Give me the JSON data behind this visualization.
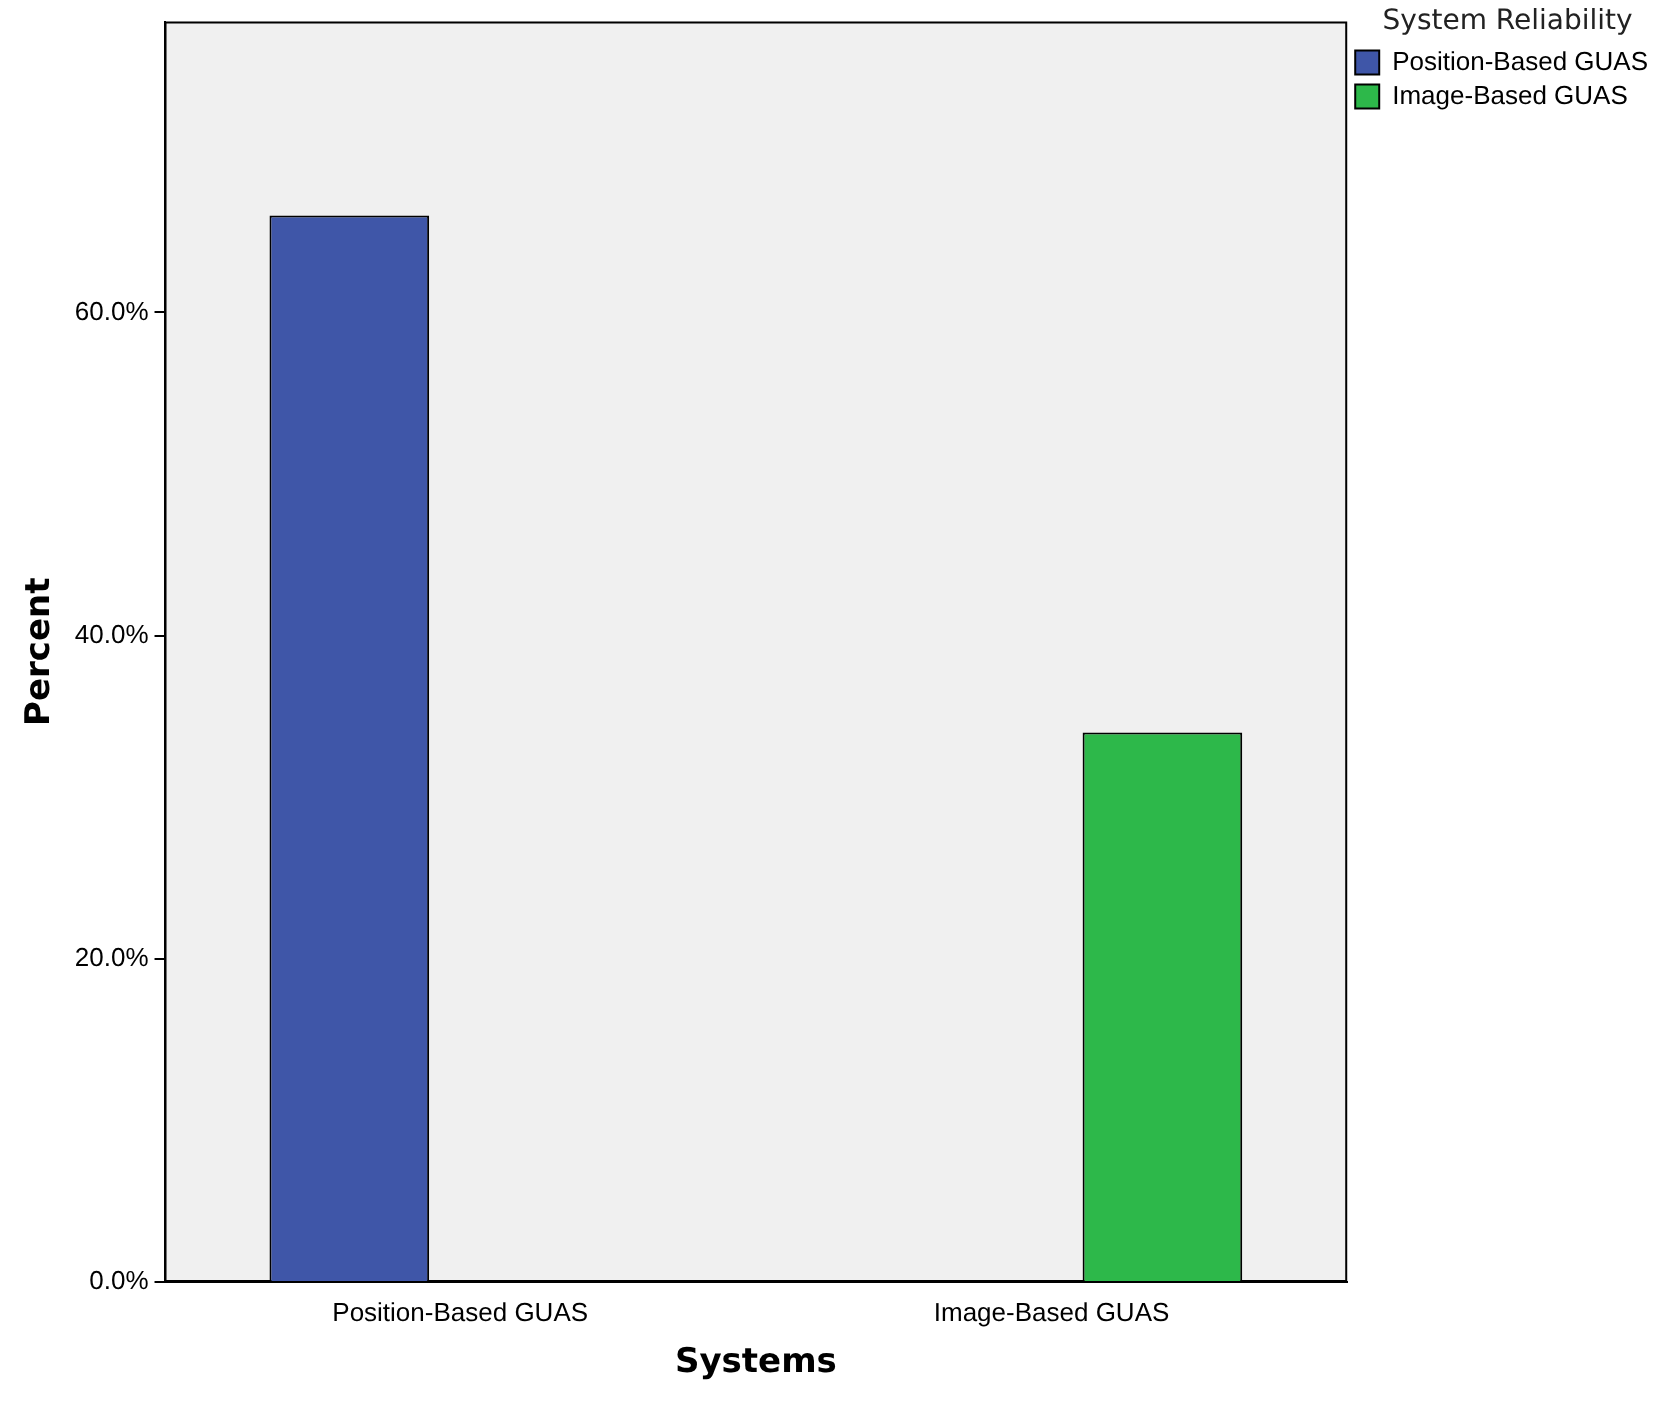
{
  "chart_data": {
    "type": "bar",
    "xlabel": "Systems",
    "ylabel": "Percent",
    "legend_title": "System Reliability",
    "categories": [
      "Position-Based GUAS",
      "Image-Based GUAS"
    ],
    "series": [
      {
        "name": "Position-Based GUAS",
        "color": "#3f56a8",
        "values": [
          66,
          null
        ]
      },
      {
        "name": "Image-Based GUAS",
        "color": "#2db84a",
        "values": [
          null,
          34
        ]
      }
    ],
    "ylim": [
      0,
      78
    ],
    "yticks": [
      {
        "value": 0,
        "label": "0.0%"
      },
      {
        "value": 20,
        "label": "20.0%"
      },
      {
        "value": 40,
        "label": "40.0%"
      },
      {
        "value": 60,
        "label": "60.0%"
      }
    ],
    "grid": false,
    "legend": "top right"
  }
}
